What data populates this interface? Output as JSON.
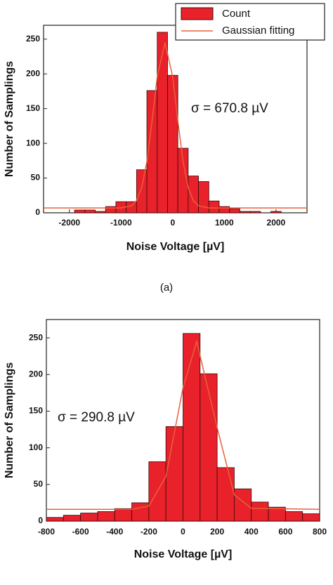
{
  "chart_data": [
    {
      "type": "histogram",
      "xlabel": "Noise Voltage [µV]",
      "ylabel": "Number of Samplings",
      "annotation": "σ = 670.8 µV",
      "caption": "(a)",
      "legend": "upper right",
      "xlim": [
        -2500,
        2600
      ],
      "ylim": [
        0,
        270
      ],
      "xticks": [
        -2000,
        -1000,
        0,
        1000,
        2000
      ],
      "yticks": [
        0,
        50,
        100,
        150,
        200,
        250
      ],
      "bins": [
        -1900,
        -1700,
        -1500,
        -1300,
        -1100,
        -900,
        -700,
        -500,
        -300,
        -100,
        100,
        300,
        500,
        700,
        900,
        1100,
        1300,
        1500,
        1700,
        1900,
        2100
      ],
      "counts": {
        "name": "Count",
        "color": "#e8212b",
        "values": [
          4,
          4,
          2,
          9,
          16,
          16,
          62,
          176,
          260,
          198,
          93,
          53,
          45,
          17,
          9,
          6,
          2,
          2,
          0,
          2
        ]
      },
      "fit": {
        "name": "Gaussian fitting",
        "color": "#e8603a",
        "x": [
          -2500,
          -1000,
          -800,
          -700,
          -600,
          -500,
          -400,
          -300,
          -150,
          0,
          100,
          200,
          300,
          400,
          500,
          700,
          2600
        ],
        "values": [
          7,
          7,
          10,
          17.5,
          36,
          74,
          132,
          196,
          245,
          196,
          132,
          74,
          36,
          17.5,
          10,
          7,
          7
        ]
      }
    },
    {
      "type": "histogram",
      "xlabel": "Noise Voltage [µV]",
      "ylabel": "Number of Samplings",
      "annotation": "σ = 290.8 µV",
      "xlim": [
        -800,
        800
      ],
      "ylim": [
        0,
        275
      ],
      "xticks": [
        -800,
        -600,
        -400,
        -200,
        0,
        200,
        400,
        600,
        800
      ],
      "yticks": [
        0,
        50,
        100,
        150,
        200,
        250
      ],
      "bins": [
        -800,
        -700,
        -600,
        -500,
        -400,
        -300,
        -200,
        -100,
        0,
        100,
        200,
        300,
        400,
        500,
        600,
        700,
        800
      ],
      "counts": {
        "color": "#e8212b",
        "values": [
          5,
          8,
          11,
          13,
          17,
          25,
          81,
          129,
          256,
          201,
          73,
          44,
          26,
          19,
          13,
          10
        ]
      },
      "fit": {
        "color": "#e8603a",
        "x": [
          -800,
          -300,
          -200,
          -100,
          0,
          80,
          200,
          300,
          400,
          800
        ],
        "values": [
          16,
          16,
          20.5,
          61,
          182,
          245,
          127.5,
          36,
          17.4,
          16
        ]
      }
    }
  ]
}
